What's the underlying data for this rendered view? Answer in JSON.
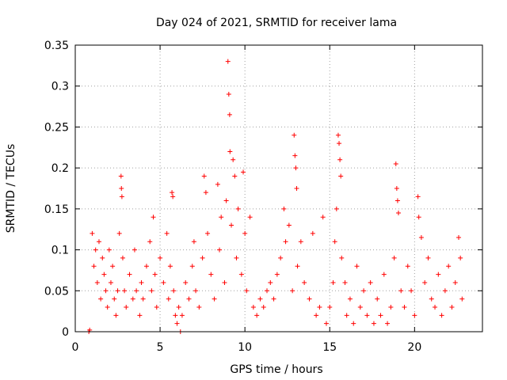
{
  "chart_data": {
    "type": "scatter",
    "title": "Day 024 of 2021, SRMTID for receiver lama",
    "xlabel": "GPS time / hours",
    "ylabel": "SRMTID / TECUs",
    "xlim": [
      0,
      24
    ],
    "ylim": [
      0,
      0.35
    ],
    "xticks": [
      0,
      5,
      10,
      15,
      20
    ],
    "xtick_labels": [
      "0",
      "5",
      "10",
      "15",
      "20"
    ],
    "yticks": [
      0,
      0.05,
      0.1,
      0.15,
      0.2,
      0.25,
      0.3,
      0.35
    ],
    "ytick_labels": [
      "0",
      "0.05",
      "0.1",
      "0.15",
      "0.2",
      "0.25",
      "0.3",
      "0.35"
    ],
    "grid": true,
    "marker": "plus",
    "series": [
      {
        "name": "SRMTID",
        "color": "#ff0000",
        "points": [
          [
            0.8,
            0.0
          ],
          [
            0.85,
            0.002
          ],
          [
            1.0,
            0.12
          ],
          [
            1.1,
            0.08
          ],
          [
            1.2,
            0.1
          ],
          [
            1.3,
            0.06
          ],
          [
            1.4,
            0.11
          ],
          [
            1.5,
            0.04
          ],
          [
            1.6,
            0.09
          ],
          [
            1.7,
            0.07
          ],
          [
            1.8,
            0.05
          ],
          [
            1.9,
            0.03
          ],
          [
            2.0,
            0.1
          ],
          [
            2.1,
            0.06
          ],
          [
            2.2,
            0.08
          ],
          [
            2.3,
            0.04
          ],
          [
            2.4,
            0.02
          ],
          [
            2.5,
            0.05
          ],
          [
            2.6,
            0.12
          ],
          [
            2.7,
            0.19
          ],
          [
            2.72,
            0.175
          ],
          [
            2.75,
            0.165
          ],
          [
            2.8,
            0.09
          ],
          [
            2.9,
            0.05
          ],
          [
            3.0,
            0.03
          ],
          [
            3.2,
            0.07
          ],
          [
            3.4,
            0.04
          ],
          [
            3.5,
            0.1
          ],
          [
            3.6,
            0.05
          ],
          [
            3.8,
            0.02
          ],
          [
            3.9,
            0.06
          ],
          [
            4.0,
            0.04
          ],
          [
            4.2,
            0.08
          ],
          [
            4.4,
            0.11
          ],
          [
            4.5,
            0.05
          ],
          [
            4.6,
            0.14
          ],
          [
            4.7,
            0.07
          ],
          [
            4.8,
            0.03
          ],
          [
            5.0,
            0.09
          ],
          [
            5.2,
            0.06
          ],
          [
            5.4,
            0.12
          ],
          [
            5.5,
            0.04
          ],
          [
            5.6,
            0.08
          ],
          [
            5.7,
            0.17
          ],
          [
            5.75,
            0.165
          ],
          [
            5.8,
            0.05
          ],
          [
            5.9,
            0.02
          ],
          [
            6.0,
            0.01
          ],
          [
            6.1,
            0.03
          ],
          [
            6.2,
            0.0
          ],
          [
            6.3,
            0.02
          ],
          [
            6.5,
            0.06
          ],
          [
            6.7,
            0.04
          ],
          [
            6.9,
            0.08
          ],
          [
            7.0,
            0.11
          ],
          [
            7.1,
            0.05
          ],
          [
            7.3,
            0.03
          ],
          [
            7.5,
            0.09
          ],
          [
            7.6,
            0.19
          ],
          [
            7.7,
            0.17
          ],
          [
            7.8,
            0.12
          ],
          [
            8.0,
            0.07
          ],
          [
            8.2,
            0.04
          ],
          [
            8.4,
            0.18
          ],
          [
            8.5,
            0.1
          ],
          [
            8.6,
            0.14
          ],
          [
            8.8,
            0.06
          ],
          [
            8.9,
            0.16
          ],
          [
            9.0,
            0.33
          ],
          [
            9.05,
            0.29
          ],
          [
            9.1,
            0.265
          ],
          [
            9.12,
            0.22
          ],
          [
            9.2,
            0.13
          ],
          [
            9.3,
            0.21
          ],
          [
            9.4,
            0.19
          ],
          [
            9.5,
            0.09
          ],
          [
            9.6,
            0.15
          ],
          [
            9.8,
            0.07
          ],
          [
            9.9,
            0.195
          ],
          [
            10.0,
            0.12
          ],
          [
            10.1,
            0.05
          ],
          [
            10.3,
            0.14
          ],
          [
            10.5,
            0.03
          ],
          [
            10.7,
            0.02
          ],
          [
            10.9,
            0.04
          ],
          [
            11.1,
            0.03
          ],
          [
            11.3,
            0.05
          ],
          [
            11.5,
            0.06
          ],
          [
            11.7,
            0.04
          ],
          [
            11.9,
            0.07
          ],
          [
            12.1,
            0.09
          ],
          [
            12.3,
            0.15
          ],
          [
            12.4,
            0.11
          ],
          [
            12.6,
            0.13
          ],
          [
            12.8,
            0.05
          ],
          [
            12.9,
            0.24
          ],
          [
            12.95,
            0.215
          ],
          [
            13.0,
            0.2
          ],
          [
            13.05,
            0.175
          ],
          [
            13.1,
            0.08
          ],
          [
            13.3,
            0.11
          ],
          [
            13.5,
            0.06
          ],
          [
            13.8,
            0.04
          ],
          [
            14.0,
            0.12
          ],
          [
            14.2,
            0.02
          ],
          [
            14.4,
            0.03
          ],
          [
            14.6,
            0.14
          ],
          [
            14.8,
            0.01
          ],
          [
            15.0,
            0.03
          ],
          [
            15.2,
            0.06
          ],
          [
            15.3,
            0.11
          ],
          [
            15.4,
            0.15
          ],
          [
            15.5,
            0.24
          ],
          [
            15.55,
            0.23
          ],
          [
            15.6,
            0.21
          ],
          [
            15.65,
            0.19
          ],
          [
            15.7,
            0.09
          ],
          [
            15.9,
            0.06
          ],
          [
            16.0,
            0.02
          ],
          [
            16.2,
            0.04
          ],
          [
            16.4,
            0.01
          ],
          [
            16.6,
            0.08
          ],
          [
            16.8,
            0.03
          ],
          [
            17.0,
            0.05
          ],
          [
            17.2,
            0.02
          ],
          [
            17.4,
            0.06
          ],
          [
            17.6,
            0.01
          ],
          [
            17.8,
            0.04
          ],
          [
            18.0,
            0.02
          ],
          [
            18.2,
            0.07
          ],
          [
            18.4,
            0.01
          ],
          [
            18.6,
            0.03
          ],
          [
            18.8,
            0.09
          ],
          [
            18.9,
            0.205
          ],
          [
            18.95,
            0.175
          ],
          [
            19.0,
            0.16
          ],
          [
            19.05,
            0.145
          ],
          [
            19.2,
            0.05
          ],
          [
            19.4,
            0.03
          ],
          [
            19.6,
            0.08
          ],
          [
            19.8,
            0.05
          ],
          [
            20.0,
            0.02
          ],
          [
            20.2,
            0.165
          ],
          [
            20.25,
            0.14
          ],
          [
            20.4,
            0.115
          ],
          [
            20.6,
            0.06
          ],
          [
            20.8,
            0.09
          ],
          [
            21.0,
            0.04
          ],
          [
            21.2,
            0.03
          ],
          [
            21.4,
            0.07
          ],
          [
            21.6,
            0.02
          ],
          [
            21.8,
            0.05
          ],
          [
            22.0,
            0.08
          ],
          [
            22.2,
            0.03
          ],
          [
            22.4,
            0.06
          ],
          [
            22.6,
            0.115
          ],
          [
            22.7,
            0.09
          ],
          [
            22.8,
            0.04
          ]
        ]
      }
    ]
  }
}
